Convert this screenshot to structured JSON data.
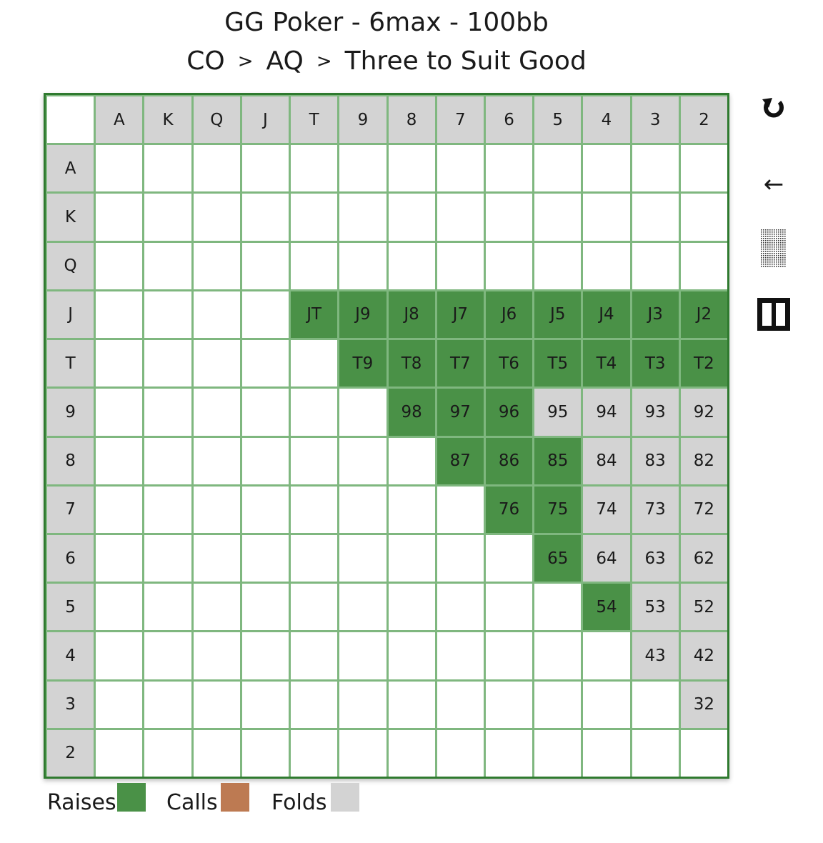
{
  "header": {
    "title": "GG Poker - 6max - 100bb",
    "breadcrumb": [
      "CO",
      "AQ",
      "Three to Suit Good"
    ],
    "separator": ">"
  },
  "colors": {
    "raise": "#4a9147",
    "call": "#bd7a52",
    "fold": "#d3d3d3",
    "empty": "#ffffff",
    "grid_border": "#2f7a2f"
  },
  "controls": {
    "reset_icon": "reset-icon",
    "back_icon": "back-arrow-icon",
    "back_label": "←",
    "pattern_icon": "dotted-pattern-icon",
    "pause_icon": "pause-icon"
  },
  "grid": {
    "ranks": [
      "A",
      "K",
      "Q",
      "J",
      "T",
      "9",
      "8",
      "7",
      "6",
      "5",
      "4",
      "3",
      "2"
    ],
    "rows": [
      [
        {
          "t": "",
          "s": "e"
        },
        {
          "t": "",
          "s": "e"
        },
        {
          "t": "",
          "s": "e"
        },
        {
          "t": "",
          "s": "e"
        },
        {
          "t": "",
          "s": "e"
        },
        {
          "t": "",
          "s": "e"
        },
        {
          "t": "",
          "s": "e"
        },
        {
          "t": "",
          "s": "e"
        },
        {
          "t": "",
          "s": "e"
        },
        {
          "t": "",
          "s": "e"
        },
        {
          "t": "",
          "s": "e"
        },
        {
          "t": "",
          "s": "e"
        },
        {
          "t": "",
          "s": "e"
        }
      ],
      [
        {
          "t": "",
          "s": "e"
        },
        {
          "t": "",
          "s": "e"
        },
        {
          "t": "",
          "s": "e"
        },
        {
          "t": "",
          "s": "e"
        },
        {
          "t": "",
          "s": "e"
        },
        {
          "t": "",
          "s": "e"
        },
        {
          "t": "",
          "s": "e"
        },
        {
          "t": "",
          "s": "e"
        },
        {
          "t": "",
          "s": "e"
        },
        {
          "t": "",
          "s": "e"
        },
        {
          "t": "",
          "s": "e"
        },
        {
          "t": "",
          "s": "e"
        },
        {
          "t": "",
          "s": "e"
        }
      ],
      [
        {
          "t": "",
          "s": "e"
        },
        {
          "t": "",
          "s": "e"
        },
        {
          "t": "",
          "s": "e"
        },
        {
          "t": "",
          "s": "e"
        },
        {
          "t": "",
          "s": "e"
        },
        {
          "t": "",
          "s": "e"
        },
        {
          "t": "",
          "s": "e"
        },
        {
          "t": "",
          "s": "e"
        },
        {
          "t": "",
          "s": "e"
        },
        {
          "t": "",
          "s": "e"
        },
        {
          "t": "",
          "s": "e"
        },
        {
          "t": "",
          "s": "e"
        },
        {
          "t": "",
          "s": "e"
        }
      ],
      [
        {
          "t": "",
          "s": "e"
        },
        {
          "t": "",
          "s": "e"
        },
        {
          "t": "",
          "s": "e"
        },
        {
          "t": "",
          "s": "e"
        },
        {
          "t": "JT",
          "s": "r"
        },
        {
          "t": "J9",
          "s": "r"
        },
        {
          "t": "J8",
          "s": "r"
        },
        {
          "t": "J7",
          "s": "r"
        },
        {
          "t": "J6",
          "s": "r"
        },
        {
          "t": "J5",
          "s": "r"
        },
        {
          "t": "J4",
          "s": "r"
        },
        {
          "t": "J3",
          "s": "r"
        },
        {
          "t": "J2",
          "s": "r"
        }
      ],
      [
        {
          "t": "",
          "s": "e"
        },
        {
          "t": "",
          "s": "e"
        },
        {
          "t": "",
          "s": "e"
        },
        {
          "t": "",
          "s": "e"
        },
        {
          "t": "",
          "s": "e"
        },
        {
          "t": "T9",
          "s": "r"
        },
        {
          "t": "T8",
          "s": "r"
        },
        {
          "t": "T7",
          "s": "r"
        },
        {
          "t": "T6",
          "s": "r"
        },
        {
          "t": "T5",
          "s": "r"
        },
        {
          "t": "T4",
          "s": "r"
        },
        {
          "t": "T3",
          "s": "r"
        },
        {
          "t": "T2",
          "s": "r"
        }
      ],
      [
        {
          "t": "",
          "s": "e"
        },
        {
          "t": "",
          "s": "e"
        },
        {
          "t": "",
          "s": "e"
        },
        {
          "t": "",
          "s": "e"
        },
        {
          "t": "",
          "s": "e"
        },
        {
          "t": "",
          "s": "e"
        },
        {
          "t": "98",
          "s": "r"
        },
        {
          "t": "97",
          "s": "r"
        },
        {
          "t": "96",
          "s": "r"
        },
        {
          "t": "95",
          "s": "f"
        },
        {
          "t": "94",
          "s": "f"
        },
        {
          "t": "93",
          "s": "f"
        },
        {
          "t": "92",
          "s": "f"
        }
      ],
      [
        {
          "t": "",
          "s": "e"
        },
        {
          "t": "",
          "s": "e"
        },
        {
          "t": "",
          "s": "e"
        },
        {
          "t": "",
          "s": "e"
        },
        {
          "t": "",
          "s": "e"
        },
        {
          "t": "",
          "s": "e"
        },
        {
          "t": "",
          "s": "e"
        },
        {
          "t": "87",
          "s": "r"
        },
        {
          "t": "86",
          "s": "r"
        },
        {
          "t": "85",
          "s": "r"
        },
        {
          "t": "84",
          "s": "f"
        },
        {
          "t": "83",
          "s": "f"
        },
        {
          "t": "82",
          "s": "f"
        }
      ],
      [
        {
          "t": "",
          "s": "e"
        },
        {
          "t": "",
          "s": "e"
        },
        {
          "t": "",
          "s": "e"
        },
        {
          "t": "",
          "s": "e"
        },
        {
          "t": "",
          "s": "e"
        },
        {
          "t": "",
          "s": "e"
        },
        {
          "t": "",
          "s": "e"
        },
        {
          "t": "",
          "s": "e"
        },
        {
          "t": "76",
          "s": "r"
        },
        {
          "t": "75",
          "s": "r"
        },
        {
          "t": "74",
          "s": "f"
        },
        {
          "t": "73",
          "s": "f"
        },
        {
          "t": "72",
          "s": "f"
        }
      ],
      [
        {
          "t": "",
          "s": "e"
        },
        {
          "t": "",
          "s": "e"
        },
        {
          "t": "",
          "s": "e"
        },
        {
          "t": "",
          "s": "e"
        },
        {
          "t": "",
          "s": "e"
        },
        {
          "t": "",
          "s": "e"
        },
        {
          "t": "",
          "s": "e"
        },
        {
          "t": "",
          "s": "e"
        },
        {
          "t": "",
          "s": "e"
        },
        {
          "t": "65",
          "s": "r"
        },
        {
          "t": "64",
          "s": "f"
        },
        {
          "t": "63",
          "s": "f"
        },
        {
          "t": "62",
          "s": "f"
        }
      ],
      [
        {
          "t": "",
          "s": "e"
        },
        {
          "t": "",
          "s": "e"
        },
        {
          "t": "",
          "s": "e"
        },
        {
          "t": "",
          "s": "e"
        },
        {
          "t": "",
          "s": "e"
        },
        {
          "t": "",
          "s": "e"
        },
        {
          "t": "",
          "s": "e"
        },
        {
          "t": "",
          "s": "e"
        },
        {
          "t": "",
          "s": "e"
        },
        {
          "t": "",
          "s": "e"
        },
        {
          "t": "54",
          "s": "r"
        },
        {
          "t": "53",
          "s": "f"
        },
        {
          "t": "52",
          "s": "f"
        }
      ],
      [
        {
          "t": "",
          "s": "e"
        },
        {
          "t": "",
          "s": "e"
        },
        {
          "t": "",
          "s": "e"
        },
        {
          "t": "",
          "s": "e"
        },
        {
          "t": "",
          "s": "e"
        },
        {
          "t": "",
          "s": "e"
        },
        {
          "t": "",
          "s": "e"
        },
        {
          "t": "",
          "s": "e"
        },
        {
          "t": "",
          "s": "e"
        },
        {
          "t": "",
          "s": "e"
        },
        {
          "t": "",
          "s": "e"
        },
        {
          "t": "43",
          "s": "f"
        },
        {
          "t": "42",
          "s": "f"
        }
      ],
      [
        {
          "t": "",
          "s": "e"
        },
        {
          "t": "",
          "s": "e"
        },
        {
          "t": "",
          "s": "e"
        },
        {
          "t": "",
          "s": "e"
        },
        {
          "t": "",
          "s": "e"
        },
        {
          "t": "",
          "s": "e"
        },
        {
          "t": "",
          "s": "e"
        },
        {
          "t": "",
          "s": "e"
        },
        {
          "t": "",
          "s": "e"
        },
        {
          "t": "",
          "s": "e"
        },
        {
          "t": "",
          "s": "e"
        },
        {
          "t": "",
          "s": "e"
        },
        {
          "t": "32",
          "s": "f"
        }
      ],
      [
        {
          "t": "",
          "s": "e"
        },
        {
          "t": "",
          "s": "e"
        },
        {
          "t": "",
          "s": "e"
        },
        {
          "t": "",
          "s": "e"
        },
        {
          "t": "",
          "s": "e"
        },
        {
          "t": "",
          "s": "e"
        },
        {
          "t": "",
          "s": "e"
        },
        {
          "t": "",
          "s": "e"
        },
        {
          "t": "",
          "s": "e"
        },
        {
          "t": "",
          "s": "e"
        },
        {
          "t": "",
          "s": "e"
        },
        {
          "t": "",
          "s": "e"
        },
        {
          "t": "",
          "s": "e"
        }
      ]
    ]
  },
  "legend": {
    "raises": "Raises",
    "calls": "Calls",
    "folds": "Folds"
  }
}
